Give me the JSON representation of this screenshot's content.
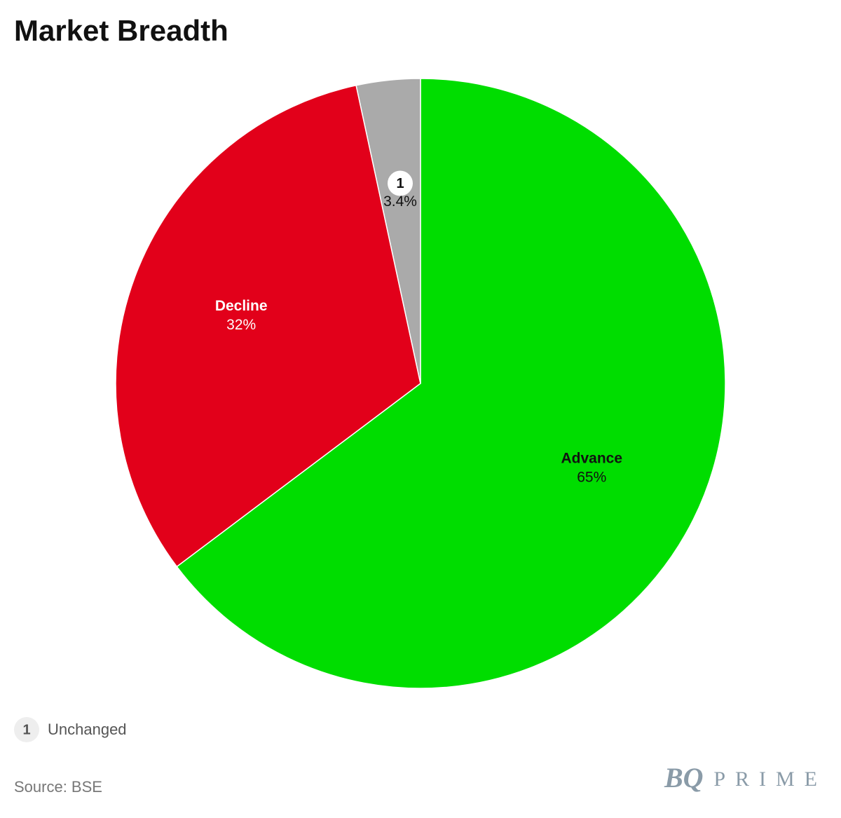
{
  "chart_data": {
    "type": "pie",
    "title": "Market Breadth",
    "categories": [
      "Advance",
      "Decline",
      "Unchanged"
    ],
    "values": [
      65,
      32,
      3.4
    ],
    "value_labels": [
      "65%",
      "32%",
      "3.4%"
    ],
    "label_markers": [
      null,
      null,
      "1"
    ],
    "colors": [
      "#00dd00",
      "#e2001a",
      "#aaaaaa"
    ],
    "label_colors": [
      "#111111",
      "#ffffff",
      "#111111"
    ],
    "source": "Source: BSE",
    "brand_mark": "BQ",
    "brand_name": "PRIME"
  }
}
